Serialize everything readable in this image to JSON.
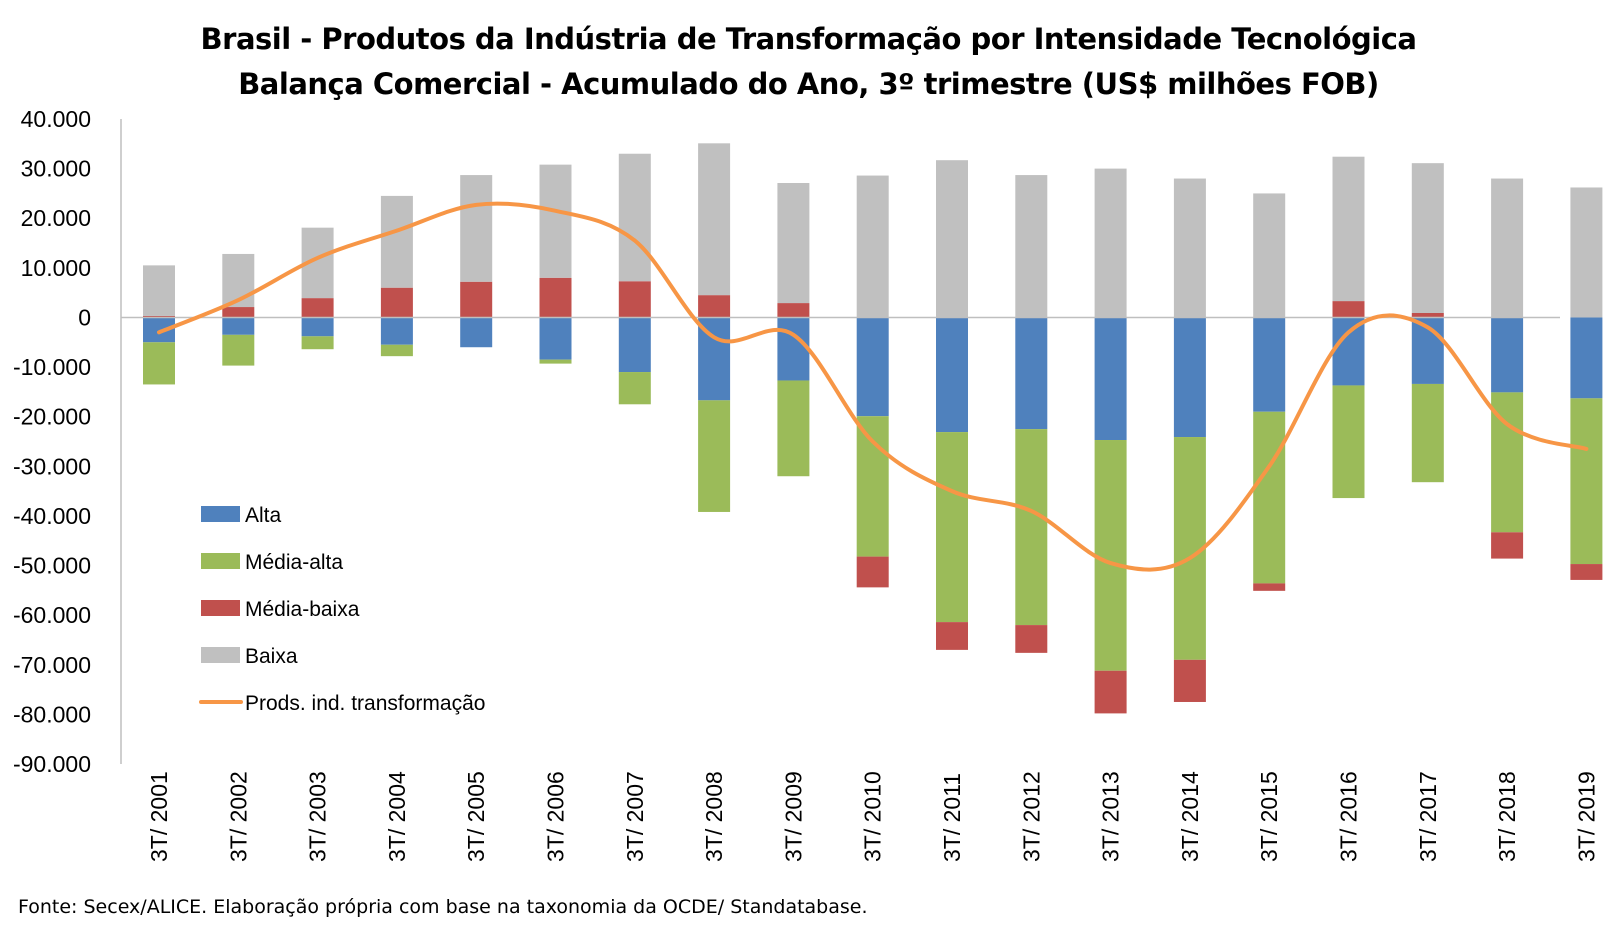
{
  "title": "Brasil - Produtos da Indústria de Transformação por Intensidade Tecnológica",
  "subtitle": "Balança Comercial - Acumulado do Ano, 3º trimestre (US$ milhões FOB)",
  "source": "Fonte: Secex/ALICE. Elaboração própria com base na taxonomia da OCDE/ Standatabase.",
  "chart_data": {
    "type": "bar",
    "stacked": true,
    "categories": [
      "3T/ 2001",
      "3T/ 2002",
      "3T/ 2003",
      "3T/ 2004",
      "3T/ 2005",
      "3T/ 2006",
      "3T/ 2007",
      "3T/ 2008",
      "3T/ 2009",
      "3T/ 2010",
      "3T/ 2011",
      "3T/ 2012",
      "3T/ 2013",
      "3T/ 2014",
      "3T/ 2015",
      "3T/ 2016",
      "3T/ 2017",
      "3T/ 2018",
      "3T/ 2019"
    ],
    "ylim": [
      -90000,
      40000
    ],
    "yticks": [
      40000,
      30000,
      20000,
      10000,
      0,
      -10000,
      -20000,
      -30000,
      -40000,
      -50000,
      -60000,
      -70000,
      -80000,
      -90000
    ],
    "ytick_labels": [
      "40.000",
      "30.000",
      "20.000",
      "10.000",
      "0",
      "-10.000",
      "-20.000",
      "-30.000",
      "-40.000",
      "-50.000",
      "-60.000",
      "-70.000",
      "-80.000",
      "-90.000"
    ],
    "grid": false,
    "legend_position": "left-center",
    "series": [
      {
        "name": "Alta",
        "kind": "bar",
        "color": "#4f81bd",
        "values": [
          -5000,
          -3500,
          -3800,
          -5500,
          -6000,
          -8500,
          -11000,
          -16700,
          -12700,
          -19900,
          -23100,
          -22500,
          -24700,
          -24100,
          -19000,
          -13700,
          -13400,
          -15100,
          -16300
        ]
      },
      {
        "name": "Média-alta",
        "kind": "bar",
        "color": "#9bbb59",
        "values": [
          -8500,
          -6200,
          -2600,
          -2300,
          0,
          -800,
          -6500,
          -22500,
          -19300,
          -28300,
          -38300,
          -39500,
          -46500,
          -44900,
          -34600,
          -22700,
          -19800,
          -28200,
          -33400
        ]
      },
      {
        "name": "Média-baixa",
        "kind": "bar",
        "color": "#c0504d",
        "values": [
          300,
          2100,
          3900,
          6000,
          7200,
          8000,
          7300,
          4500,
          2900,
          -6200,
          -5600,
          -5600,
          -8600,
          -8500,
          -1500,
          3300,
          900,
          -5300,
          -3200
        ]
      },
      {
        "name": "Baixa",
        "kind": "bar",
        "color": "#c0c0c0",
        "values": [
          10200,
          10700,
          14200,
          18500,
          21500,
          22800,
          25700,
          30600,
          24200,
          28600,
          31700,
          28700,
          30000,
          28000,
          25000,
          29100,
          30200,
          28000,
          26200
        ]
      },
      {
        "name": "Prods. ind. transformação",
        "kind": "line",
        "color": "#f79646",
        "values": [
          -3000,
          3500,
          12000,
          17500,
          22700,
          21500,
          15500,
          -4000,
          -3500,
          -25000,
          -35000,
          -39000,
          -49500,
          -48500,
          -30000,
          -3000,
          -2000,
          -21500,
          -26500
        ]
      }
    ]
  }
}
